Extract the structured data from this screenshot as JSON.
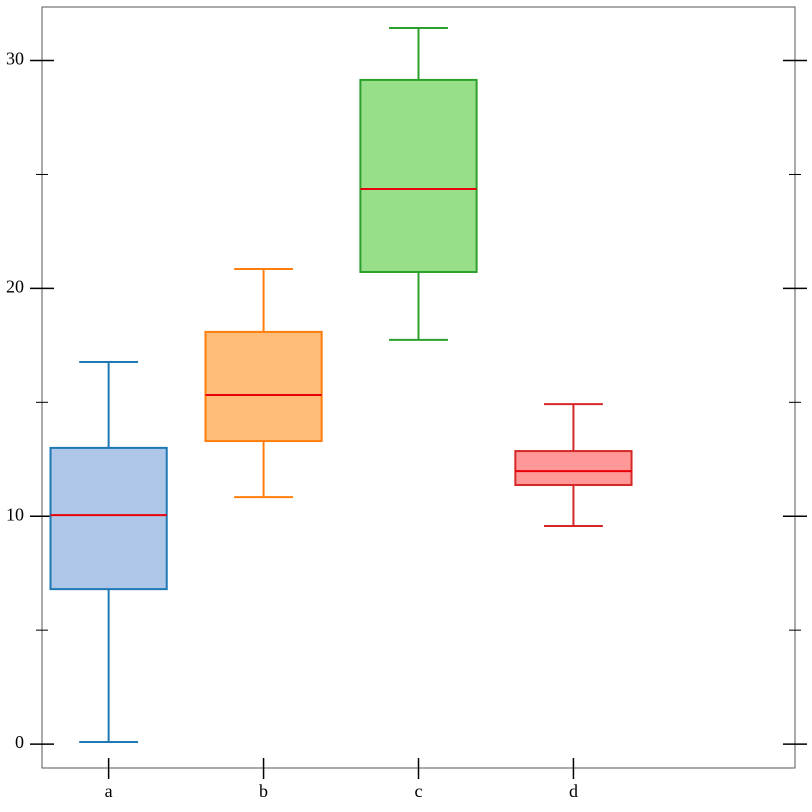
{
  "chart_data": {
    "type": "box",
    "categories": [
      "a",
      "b",
      "c",
      "d"
    ],
    "boxes": [
      {
        "min": 0.09,
        "q1": 6.8,
        "median": 10.05,
        "q3": 13.0,
        "max": 16.77,
        "color": "#1f77b4",
        "fill": "#aec7e8"
      },
      {
        "min": 10.84,
        "q1": 13.3,
        "median": 15.32,
        "q3": 18.09,
        "max": 20.85,
        "color": "#ff7f0e",
        "fill": "#ffbb78"
      },
      {
        "min": 17.74,
        "q1": 20.72,
        "median": 24.36,
        "q3": 29.15,
        "max": 31.43,
        "color": "#2ca02c",
        "fill": "#98df8a"
      },
      {
        "min": 9.57,
        "q1": 11.37,
        "median": 11.98,
        "q3": 12.86,
        "max": 14.92,
        "color": "#d62728",
        "fill": "#ff9896"
      }
    ],
    "median_color": "#e8000b",
    "ylim": [
      -1.05,
      32.35
    ],
    "yticks": [
      0,
      10,
      20,
      30
    ],
    "minor_yticks": [
      5,
      15,
      25
    ]
  }
}
